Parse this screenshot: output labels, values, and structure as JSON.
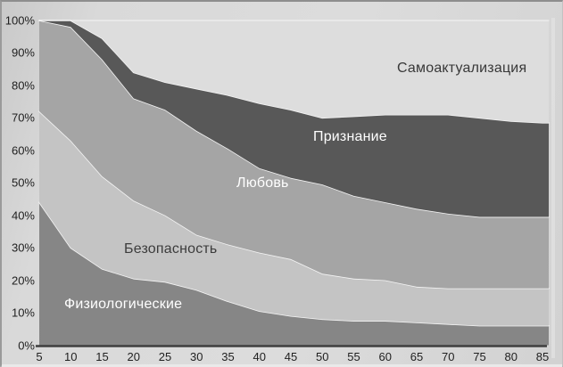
{
  "chart_data": {
    "type": "area",
    "stacked": true,
    "title": "",
    "xlabel": "",
    "ylabel": "",
    "x": [
      5,
      10,
      15,
      20,
      25,
      30,
      35,
      40,
      45,
      50,
      55,
      60,
      65,
      70,
      75,
      80,
      85
    ],
    "x_tick_labels": [
      "5",
      "10",
      "15",
      "20",
      "25",
      "30",
      "35",
      "40",
      "45",
      "50",
      "55",
      "60",
      "65",
      "70",
      "75",
      "80",
      "85"
    ],
    "y_tick_labels": [
      "0%",
      "10%",
      "20%",
      "30%",
      "40%",
      "50%",
      "60%",
      "70%",
      "80%",
      "90%",
      "100%"
    ],
    "ylim": [
      0,
      100
    ],
    "grid": false,
    "legend_position": "labels-inside-areas",
    "series": [
      {
        "name": "Физиологические",
        "fill": "#868686",
        "label_color": "#ffffff",
        "values": [
          44,
          30,
          23.5,
          20.5,
          19.5,
          17,
          13.5,
          10.5,
          9,
          8,
          7.5,
          7.5,
          7,
          6.5,
          6,
          6,
          6
        ]
      },
      {
        "name": "Безопасность",
        "fill": "#c4c4c4",
        "label_color": "#3c3c3c",
        "values": [
          28,
          33,
          28.5,
          24,
          20.5,
          17,
          17.5,
          18,
          17.5,
          14,
          13,
          12.5,
          11,
          11,
          11.5,
          11.5,
          11.5
        ]
      },
      {
        "name": "Любовь",
        "fill": "#a5a5a5",
        "label_color": "#ffffff",
        "values": [
          28,
          35,
          36,
          31.5,
          32.5,
          32,
          29.5,
          26,
          25,
          27.5,
          25.5,
          24,
          24,
          23,
          22,
          22,
          22
        ]
      },
      {
        "name": "Признание",
        "fill": "#585858",
        "label_color": "#ffffff",
        "values": [
          0,
          2,
          6.5,
          8,
          8.5,
          13,
          16.5,
          20,
          21,
          20.5,
          24.5,
          27,
          29,
          30.5,
          30.5,
          29.5,
          29
        ]
      },
      {
        "name": "Самоактуализация",
        "fill": "#dddddd",
        "label_color": "#383838",
        "values": [
          0,
          0,
          5.5,
          16,
          19,
          21,
          23,
          25.5,
          27.5,
          30,
          29.5,
          29,
          29,
          29,
          30,
          31,
          31.5
        ]
      }
    ],
    "boundary_stroke": "#f5f5f5",
    "axis_color": "#3f3f3f",
    "tick_color": "#1f1f1f"
  }
}
